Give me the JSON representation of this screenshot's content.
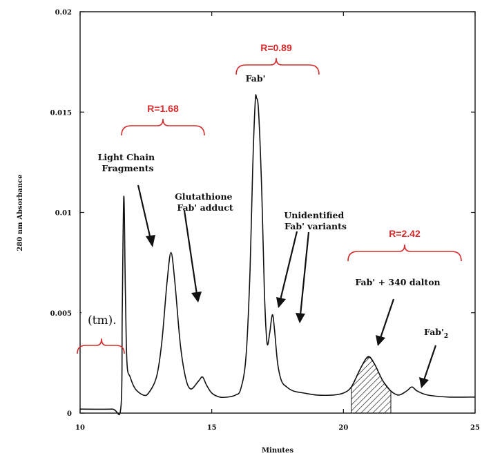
{
  "chart_data": {
    "type": "line",
    "xlabel": "Minutes",
    "ylabel": "280 nm Absorbance",
    "xlim": [
      10,
      25
    ],
    "ylim": [
      0,
      0.02
    ],
    "x_ticks": [
      "10",
      "15",
      "20",
      "25"
    ],
    "y_ticks": [
      "0",
      "0.005",
      "0.01",
      "0.015",
      "0.02"
    ],
    "x_tick_values": [
      10,
      15,
      20,
      25
    ],
    "y_tick_values": [
      0,
      0.005,
      0.01,
      0.015,
      0.02
    ],
    "grid": false,
    "series": [
      {
        "points": [
          [
            10.0,
            0.0002
          ],
          [
            11.2,
            0.0002
          ],
          [
            11.55,
            0.0003
          ],
          [
            11.6,
            0.005
          ],
          [
            11.66,
            0.0108
          ],
          [
            11.72,
            0.006
          ],
          [
            11.78,
            0.0025
          ],
          [
            11.9,
            0.0018
          ],
          [
            12.1,
            0.0012
          ],
          [
            12.4,
            0.0009
          ],
          [
            12.6,
            0.001
          ],
          [
            12.9,
            0.0018
          ],
          [
            13.1,
            0.0035
          ],
          [
            13.3,
            0.0065
          ],
          [
            13.45,
            0.008
          ],
          [
            13.6,
            0.0065
          ],
          [
            13.8,
            0.0035
          ],
          [
            14.0,
            0.0018
          ],
          [
            14.2,
            0.0012
          ],
          [
            14.5,
            0.0016
          ],
          [
            14.65,
            0.0018
          ],
          [
            14.8,
            0.0014
          ],
          [
            15.0,
            0.001
          ],
          [
            15.3,
            0.0008
          ],
          [
            15.6,
            0.0008
          ],
          [
            15.9,
            0.0009
          ],
          [
            16.1,
            0.0012
          ],
          [
            16.3,
            0.0028
          ],
          [
            16.45,
            0.007
          ],
          [
            16.55,
            0.012
          ],
          [
            16.65,
            0.0155
          ],
          [
            16.7,
            0.0157
          ],
          [
            16.78,
            0.015
          ],
          [
            16.9,
            0.011
          ],
          [
            17.0,
            0.006
          ],
          [
            17.1,
            0.0035
          ],
          [
            17.2,
            0.004
          ],
          [
            17.3,
            0.0049
          ],
          [
            17.38,
            0.0042
          ],
          [
            17.5,
            0.0025
          ],
          [
            17.65,
            0.0016
          ],
          [
            17.85,
            0.0013
          ],
          [
            18.1,
            0.0011
          ],
          [
            18.5,
            0.001
          ],
          [
            19.0,
            0.0009
          ],
          [
            19.6,
            0.0009
          ],
          [
            20.0,
            0.001
          ],
          [
            20.3,
            0.0013
          ],
          [
            20.6,
            0.0021
          ],
          [
            20.85,
            0.0027
          ],
          [
            21.0,
            0.0028
          ],
          [
            21.2,
            0.0024
          ],
          [
            21.5,
            0.0016
          ],
          [
            21.8,
            0.0011
          ],
          [
            22.1,
            0.0009
          ],
          [
            22.4,
            0.0011
          ],
          [
            22.6,
            0.0013
          ],
          [
            22.8,
            0.0011
          ],
          [
            23.2,
            0.0009
          ],
          [
            24.0,
            0.0008
          ],
          [
            25.0,
            0.0008
          ]
        ]
      }
    ],
    "annotations": {
      "light_chain": [
        "Light Chain",
        "Fragments"
      ],
      "glutathione": [
        "Glutathione",
        "Fab' adduct"
      ],
      "fab_prime": "Fab'",
      "unidentified": [
        "Unidentified",
        "Fab' variants"
      ],
      "fab_340": "Fab' + 340 dalton",
      "fab2_main": "Fab'",
      "fab2_sub": "2",
      "tm": "(tm).",
      "r1": "R=1.68",
      "r2": "R=0.89",
      "r3": "R=2.42"
    },
    "colors": {
      "trace": "#111111",
      "bracket": "#d42a2a",
      "hatch_fill": "#111111"
    }
  }
}
